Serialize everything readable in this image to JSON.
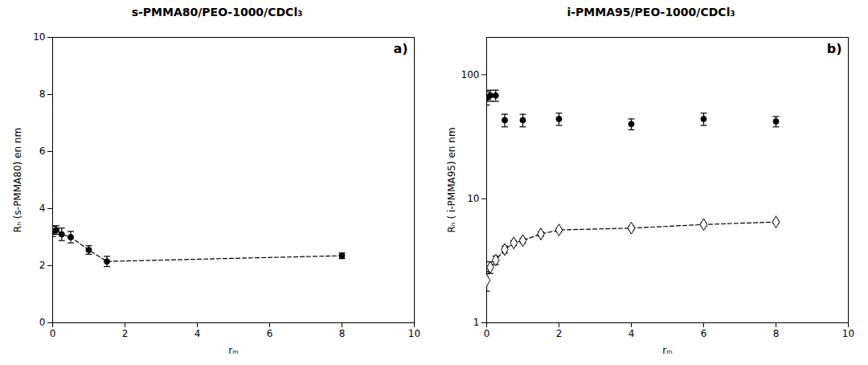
{
  "chart_data": [
    {
      "type": "line",
      "title": "s-PMMA80/PEO-1000/CDCl₃",
      "annotation": "a)",
      "xlabel": "rₘ",
      "ylabel": "Rₕ (s-PMMA80) en nm",
      "xlim": [
        0,
        10
      ],
      "ylim": [
        0,
        10
      ],
      "xticks": [
        0,
        2,
        4,
        6,
        8,
        10
      ],
      "yticks": [
        0,
        2,
        4,
        6,
        8,
        10
      ],
      "grid": false,
      "series": [
        {
          "type": "line",
          "color": "#000000",
          "marker": "circle",
          "line_style": "dashed",
          "x": [
            0.0,
            0.1,
            0.25,
            0.5,
            1.0,
            1.5,
            8.0
          ],
          "values": [
            3.2,
            3.25,
            3.1,
            3.0,
            2.55,
            2.15,
            2.35
          ],
          "yerr": [
            0.18,
            0.15,
            0.22,
            0.2,
            0.15,
            0.18,
            0.1
          ]
        }
      ]
    },
    {
      "type": "line",
      "title": "i-PMMA95/PEO-1000/CDCl₃",
      "annotation": "b)",
      "xlabel": "rₘ",
      "ylabel": "Rₕ ( i-PMMA95) en nm",
      "log": "y",
      "xlim": [
        0,
        10
      ],
      "ylim": [
        1,
        200
      ],
      "xticks": [
        0,
        2,
        4,
        6,
        8,
        10
      ],
      "yticks": [
        1,
        10,
        100
      ],
      "grid": false,
      "series": [
        {
          "type": "line",
          "color": "#000000",
          "marker": "open_diamond",
          "line_style": "dashed",
          "x": [
            0.0,
            0.1,
            0.25,
            0.5,
            0.75,
            1.0,
            1.5,
            2.0,
            4.0,
            6.0,
            8.0
          ],
          "values": [
            2.2,
            2.8,
            3.2,
            3.9,
            4.4,
            4.6,
            5.2,
            5.6,
            5.8,
            6.2,
            6.5
          ],
          "yerr": [
            0.4,
            0.3,
            0.25,
            0.25,
            0.2,
            0.2,
            0.2,
            0.2,
            0.2,
            0.2,
            0.2
          ]
        },
        {
          "type": "scatter",
          "color": "#000000",
          "marker": "circle",
          "line_style": "none",
          "x": [
            0.0,
            0.1,
            0.25,
            0.5,
            1.0,
            2.0,
            4.0,
            6.0,
            8.0
          ],
          "values": [
            65,
            68,
            68,
            43,
            43,
            44,
            40,
            44,
            42
          ],
          "yerr": [
            8,
            7,
            7,
            5,
            5,
            5,
            4,
            5,
            4
          ]
        }
      ]
    }
  ]
}
